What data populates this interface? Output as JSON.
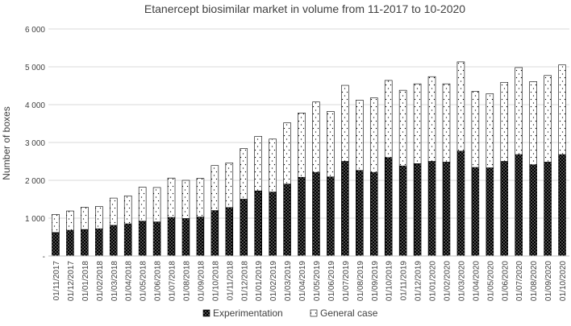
{
  "chart_data": {
    "type": "bar",
    "stacked": true,
    "title": "Etanercept biosimilar market in volume from 11-2017 to 10-2020",
    "xlabel": "",
    "ylabel": "Number of boxes",
    "ylim": [
      0,
      6000
    ],
    "y_ticks": [
      0,
      1000,
      2000,
      3000,
      4000,
      5000,
      6000
    ],
    "y_tick_labels": [
      "-",
      "1 000",
      "2 000",
      "3 000",
      "4 000",
      "5 000",
      "6 000"
    ],
    "grid": "horizontal",
    "legend_position": "bottom",
    "categories": [
      "01/11/2017",
      "01/12/2017",
      "01/01/2018",
      "01/02/2018",
      "01/03/2018",
      "01/04/2018",
      "01/05/2018",
      "01/06/2018",
      "01/07/2018",
      "01/08/2018",
      "01/09/2018",
      "01/10/2018",
      "01/11/2018",
      "01/12/2018",
      "01/01/2019",
      "01/02/2019",
      "01/03/2019",
      "01/04/2019",
      "01/05/2019",
      "01/06/2019",
      "01/07/2019",
      "01/08/2019",
      "01/09/2019",
      "01/10/2019",
      "01/11/2019",
      "01/12/2019",
      "01/01/2020",
      "01/02/2020",
      "01/03/2020",
      "01/04/2020",
      "01/05/2020",
      "01/06/2020",
      "01/07/2020",
      "01/08/2020",
      "01/09/2020",
      "01/10/2020"
    ],
    "series": [
      {
        "name": "Experimentation",
        "color": "#000000",
        "pattern": "dense-dots",
        "values": [
          620,
          680,
          700,
          720,
          810,
          850,
          920,
          900,
          1020,
          990,
          1030,
          1200,
          1280,
          1500,
          1720,
          1690,
          1900,
          2080,
          2210,
          2090,
          2500,
          2260,
          2210,
          2600,
          2380,
          2440,
          2500,
          2480,
          2770,
          2340,
          2330,
          2500,
          2680,
          2410,
          2480,
          2680
        ]
      },
      {
        "name": "General case",
        "color": "#ffffff",
        "pattern": "sparse-dots",
        "values": [
          480,
          510,
          590,
          590,
          720,
          740,
          900,
          910,
          1040,
          1010,
          1020,
          1190,
          1180,
          1340,
          1440,
          1400,
          1620,
          1700,
          1860,
          1730,
          2010,
          1860,
          1970,
          2040,
          2000,
          2110,
          2240,
          2070,
          2360,
          2010,
          1960,
          2090,
          2300,
          2200,
          2290,
          2370
        ]
      }
    ]
  }
}
